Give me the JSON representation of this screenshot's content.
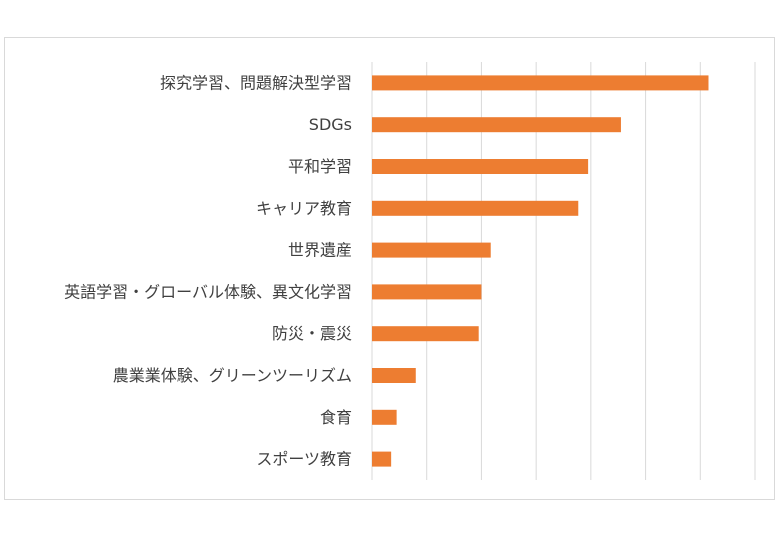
{
  "chart_data": {
    "type": "bar",
    "orientation": "horizontal",
    "categories": [
      "探究学習、問題解決型学習",
      "SDGs",
      "平和学習",
      "キャリア教育",
      "世界遺産",
      "英語学習・グローバル体験、異文化学習",
      "防災・震災",
      "農業業体験、グリーンツーリズム",
      "食育",
      "スポーツ教育"
    ],
    "values": [
      6.15,
      4.55,
      3.95,
      3.77,
      2.17,
      2.0,
      1.95,
      0.8,
      0.45,
      0.35
    ],
    "xlim": [
      0,
      7
    ],
    "grid": true,
    "bar_color": "#ed7d31",
    "grid_color": "#d9d9d9",
    "title": "",
    "xlabel": "",
    "ylabel": ""
  }
}
